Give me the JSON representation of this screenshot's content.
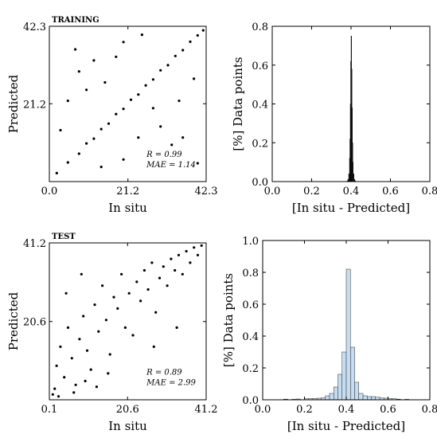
{
  "chart_data": [
    {
      "type": "scatter",
      "title": "TRAINING",
      "xlabel": "In situ",
      "ylabel": "Predicted",
      "xlim": [
        0.0,
        42.3
      ],
      "ylim": [
        0.0,
        42.3
      ],
      "xticks": [
        "0.0",
        "21.2",
        "42.3"
      ],
      "yticks": [
        "21.2",
        "42.3"
      ],
      "annotation_lines": [
        "R = 0.99",
        "MAE = 1.14"
      ],
      "point_color": "#000000",
      "points": [
        [
          2.0,
          2.3
        ],
        [
          5.0,
          5.2
        ],
        [
          8.0,
          7.6
        ],
        [
          10.0,
          10.4
        ],
        [
          12.0,
          11.7
        ],
        [
          14.0,
          14.3
        ],
        [
          16.0,
          15.8
        ],
        [
          18.0,
          18.4
        ],
        [
          20.0,
          19.8
        ],
        [
          22.0,
          22.3
        ],
        [
          24.0,
          23.7
        ],
        [
          26.0,
          26.2
        ],
        [
          28.0,
          27.8
        ],
        [
          30.0,
          30.3
        ],
        [
          32.0,
          31.7
        ],
        [
          34.0,
          34.2
        ],
        [
          36.0,
          35.8
        ],
        [
          38.0,
          38.1
        ],
        [
          40.0,
          39.8
        ],
        [
          41.5,
          41.2
        ],
        [
          3.0,
          14.0
        ],
        [
          5.0,
          22.0
        ],
        [
          8.0,
          30.0
        ],
        [
          10.0,
          25.0
        ],
        [
          7.0,
          36.0
        ],
        [
          12.0,
          33.0
        ],
        [
          15.0,
          27.0
        ],
        [
          18.0,
          34.0
        ],
        [
          20.0,
          38.0
        ],
        [
          25.0,
          40.0
        ],
        [
          28.0,
          20.0
        ],
        [
          30.0,
          15.0
        ],
        [
          33.0,
          10.0
        ],
        [
          36.0,
          12.0
        ],
        [
          39.0,
          28.0
        ],
        [
          35.0,
          22.0
        ],
        [
          24.0,
          12.0
        ],
        [
          20.0,
          6.0
        ],
        [
          14.0,
          4.0
        ],
        [
          40.0,
          5.0
        ]
      ]
    },
    {
      "type": "bar",
      "title": "",
      "xlabel": "[In situ - Predicted]",
      "ylabel": "[%] Data points",
      "xlim": [
        0,
        0.8
      ],
      "ylim": [
        0,
        0.8
      ],
      "xticks": [
        "0.0",
        "0.2",
        "0.4",
        "0.6",
        "0.8"
      ],
      "yticks": [
        "0.0",
        "0.2",
        "0.4",
        "0.6",
        "0.8"
      ],
      "bin_width": 0.002,
      "bins": [
        0.38,
        0.384,
        0.388,
        0.392,
        0.394,
        0.396,
        0.398,
        0.4,
        0.402,
        0.404,
        0.406,
        0.408,
        0.412,
        0.416,
        0.42
      ],
      "values": [
        0.004,
        0.012,
        0.04,
        0.12,
        0.22,
        0.4,
        0.62,
        0.75,
        0.58,
        0.38,
        0.2,
        0.1,
        0.04,
        0.012,
        0.004
      ],
      "bar_color": "#222222"
    },
    {
      "type": "scatter",
      "title": "TEST",
      "xlabel": "In situ",
      "ylabel": "Predicted",
      "xlim": [
        0.1,
        41.2
      ],
      "ylim": [
        0.1,
        41.2
      ],
      "xticks": [
        "0.1",
        "20.6",
        "41.2"
      ],
      "yticks": [
        "20.6",
        "41.2"
      ],
      "annotation_lines": [
        "R = 0.89",
        "MAE = 2.99"
      ],
      "point_color": "#000000",
      "points": [
        [
          1.0,
          1.5
        ],
        [
          2.0,
          9.0
        ],
        [
          3.0,
          14.0
        ],
        [
          4.0,
          6.0
        ],
        [
          5.0,
          19.0
        ],
        [
          6.0,
          11.0
        ],
        [
          7.0,
          4.0
        ],
        [
          8.0,
          16.0
        ],
        [
          9.0,
          22.0
        ],
        [
          10.0,
          13.0
        ],
        [
          11.0,
          8.0
        ],
        [
          12.0,
          25.0
        ],
        [
          13.0,
          18.0
        ],
        [
          14.0,
          30.0
        ],
        [
          15.0,
          21.0
        ],
        [
          16.0,
          12.0
        ],
        [
          17.0,
          27.0
        ],
        [
          18.0,
          24.0
        ],
        [
          19.0,
          33.0
        ],
        [
          20.0,
          19.0
        ],
        [
          21.0,
          28.0
        ],
        [
          22.0,
          17.0
        ],
        [
          23.0,
          31.0
        ],
        [
          24.0,
          26.0
        ],
        [
          25.0,
          34.0
        ],
        [
          26.0,
          29.0
        ],
        [
          27.0,
          36.0
        ],
        [
          28.0,
          23.0
        ],
        [
          29.0,
          32.0
        ],
        [
          30.0,
          35.0
        ],
        [
          31.0,
          30.0
        ],
        [
          32.0,
          37.0
        ],
        [
          33.0,
          34.0
        ],
        [
          34.0,
          38.0
        ],
        [
          35.0,
          33.0
        ],
        [
          36.0,
          39.0
        ],
        [
          37.0,
          36.0
        ],
        [
          38.0,
          40.0
        ],
        [
          39.0,
          38.0
        ],
        [
          40.0,
          40.5
        ],
        [
          1.5,
          3.0
        ],
        [
          2.5,
          1.0
        ],
        [
          6.5,
          2.0
        ],
        [
          9.5,
          5.0
        ],
        [
          12.5,
          3.5
        ],
        [
          15.5,
          7.0
        ],
        [
          4.5,
          28.0
        ],
        [
          8.5,
          33.0
        ],
        [
          27.5,
          14.0
        ],
        [
          33.5,
          19.0
        ]
      ]
    },
    {
      "type": "bar",
      "title": "",
      "xlabel": "[In situ - Predicted]",
      "ylabel": "[%] Data points",
      "xlim": [
        0,
        0.8
      ],
      "ylim": [
        0,
        1.0
      ],
      "xticks": [
        "0.0",
        "0.2",
        "0.4",
        "0.6",
        "0.8"
      ],
      "yticks": [
        "0.0",
        "0.2",
        "0.4",
        "0.6",
        "0.8",
        "1.0"
      ],
      "bin_width": 0.02,
      "bins": [
        0.1,
        0.14,
        0.16,
        0.2,
        0.22,
        0.24,
        0.26,
        0.28,
        0.3,
        0.32,
        0.34,
        0.36,
        0.38,
        0.4,
        0.42,
        0.44,
        0.46,
        0.48,
        0.5,
        0.52,
        0.54,
        0.56,
        0.58,
        0.6,
        0.62,
        0.64,
        0.68
      ],
      "values": [
        0.004,
        0.003,
        0.005,
        0.006,
        0.007,
        0.008,
        0.01,
        0.012,
        0.025,
        0.04,
        0.08,
        0.16,
        0.3,
        0.82,
        0.33,
        0.11,
        0.04,
        0.025,
        0.02,
        0.02,
        0.016,
        0.012,
        0.01,
        0.008,
        0.006,
        0.004,
        0.003
      ],
      "bar_color": "#c6dcf0"
    }
  ]
}
